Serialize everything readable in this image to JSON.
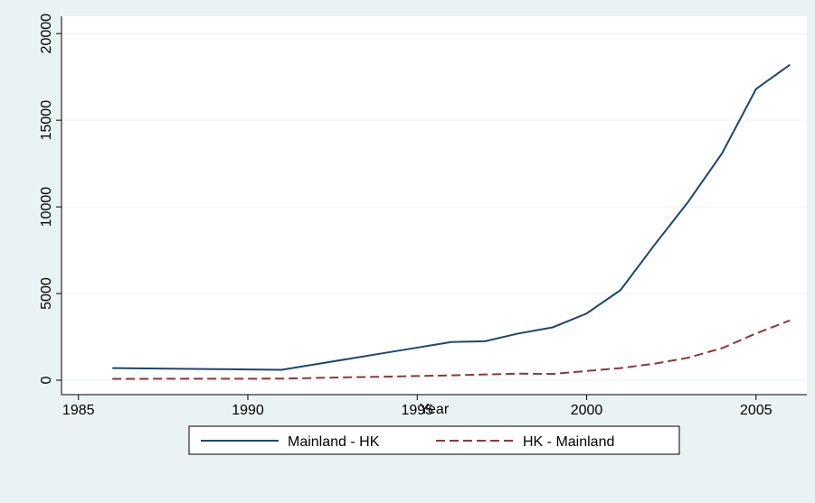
{
  "chart_data": {
    "type": "line",
    "x_label": "Year",
    "x": [
      1986,
      1987,
      1988,
      1989,
      1990,
      1991,
      1992,
      1993,
      1994,
      1995,
      1996,
      1997,
      1998,
      1999,
      2000,
      2001,
      2002,
      2003,
      2004,
      2005,
      2006
    ],
    "series": [
      {
        "name": "Mainland - HK",
        "color": "#1a476f",
        "dash": false,
        "values": [
          700,
          680,
          660,
          640,
          620,
          600,
          920,
          1240,
          1560,
          1880,
          2200,
          2250,
          2700,
          3050,
          3850,
          5200,
          7800,
          10300,
          13100,
          16800,
          18200
        ]
      },
      {
        "name": "HK - Mainland",
        "color": "#90353b",
        "dash": true,
        "values": [
          80,
          82,
          84,
          86,
          88,
          90,
          130,
          170,
          200,
          240,
          280,
          330,
          380,
          360,
          530,
          700,
          950,
          1300,
          1850,
          2700,
          3450
        ]
      }
    ],
    "xlim": [
      1984.5,
      2006.5
    ],
    "xticks": [
      1985,
      1990,
      1995,
      2000,
      2005
    ],
    "ylim": [
      -833,
      21000
    ],
    "yticks": [
      0,
      5000,
      10000,
      15000,
      20000
    ],
    "grid": true,
    "legend": "bottom"
  }
}
